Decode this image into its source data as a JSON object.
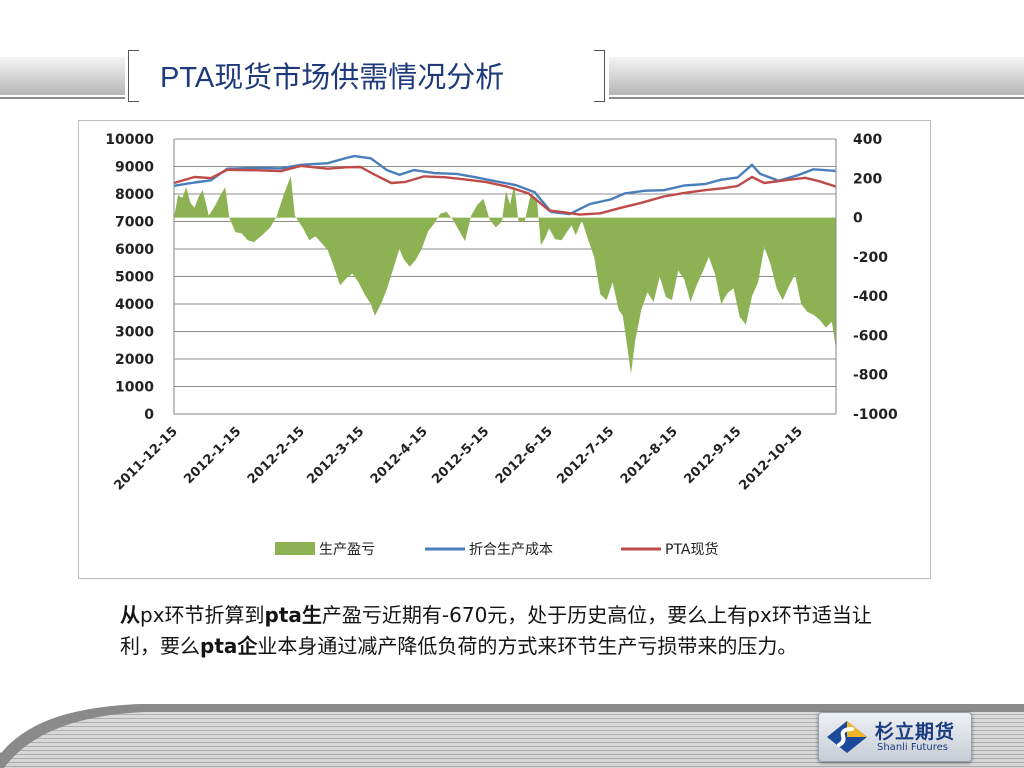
{
  "slide": {
    "title": "PTA现货市场供需情况分析",
    "caption": {
      "p1": "从",
      "p2": "px环节折算到",
      "p3": "pta生",
      "p4": "产盈亏近期有-670元",
      "p5": "，处于历史高位，要么上有px环节适当让利，要么",
      "p6": "pta企",
      "p7": "业本身通过减产降低负荷的方式来环节生产亏损带来的压力。"
    },
    "logo": {
      "cn": "杉立期货",
      "en": "Shanli Futures"
    }
  },
  "colors": {
    "profit": "#8db254",
    "cost": "#4a7ebb",
    "spot": "#be4b48",
    "title": "#1f3a7a"
  },
  "chart_data": {
    "type": "line",
    "left_axis": {
      "min": 0,
      "max": 10000,
      "ticks": [
        "0",
        "1000",
        "2000",
        "3000",
        "4000",
        "5000",
        "6000",
        "7000",
        "8000",
        "9000",
        "10000"
      ]
    },
    "right_axis": {
      "min": -1000,
      "max": 400,
      "ticks": [
        "-1000",
        "-800",
        "-600",
        "-400",
        "-200",
        "0",
        "200",
        "400"
      ]
    },
    "x_ticks": [
      "2011-12-15",
      "2012-1-15",
      "2012-2-15",
      "2012-3-15",
      "2012-4-15",
      "2012-5-15",
      "2012-6-15",
      "2012-7-15",
      "2012-8-15",
      "2012-9-15",
      "2012-10-15"
    ],
    "x_range": [
      "2011-12-15",
      "2012-11-02"
    ],
    "grid": "horizontal",
    "legend_position": "bottom",
    "series": [
      {
        "name": "生产盈亏",
        "kind": "area",
        "axis": "right",
        "points": [
          [
            "2011-12-15",
            0
          ],
          [
            "2011-12-17",
            115
          ],
          [
            "2011-12-19",
            100
          ],
          [
            "2011-12-21",
            155
          ],
          [
            "2011-12-23",
            75
          ],
          [
            "2011-12-25",
            50
          ],
          [
            "2011-12-27",
            105
          ],
          [
            "2011-12-29",
            140
          ],
          [
            "2012-01-01",
            10
          ],
          [
            "2012-01-04",
            60
          ],
          [
            "2012-01-07",
            120
          ],
          [
            "2012-01-09",
            155
          ],
          [
            "2012-01-11",
            0
          ],
          [
            "2012-01-14",
            -75
          ],
          [
            "2012-01-17",
            -80
          ],
          [
            "2012-01-20",
            -115
          ],
          [
            "2012-01-23",
            -125
          ],
          [
            "2012-01-27",
            -90
          ],
          [
            "2012-01-31",
            -50
          ],
          [
            "2012-02-03",
            5
          ],
          [
            "2012-02-07",
            130
          ],
          [
            "2012-02-10",
            210
          ],
          [
            "2012-02-12",
            10
          ],
          [
            "2012-02-16",
            -55
          ],
          [
            "2012-02-19",
            -115
          ],
          [
            "2012-02-22",
            -95
          ],
          [
            "2012-02-25",
            -130
          ],
          [
            "2012-02-28",
            -165
          ],
          [
            "2012-03-02",
            -250
          ],
          [
            "2012-03-05",
            -345
          ],
          [
            "2012-03-08",
            -310
          ],
          [
            "2012-03-11",
            -285
          ],
          [
            "2012-03-14",
            -330
          ],
          [
            "2012-03-17",
            -390
          ],
          [
            "2012-03-20",
            -440
          ],
          [
            "2012-03-22",
            -500
          ],
          [
            "2012-03-25",
            -440
          ],
          [
            "2012-03-28",
            -360
          ],
          [
            "2012-03-31",
            -260
          ],
          [
            "2012-04-03",
            -160
          ],
          [
            "2012-04-05",
            -210
          ],
          [
            "2012-04-08",
            -250
          ],
          [
            "2012-04-11",
            -215
          ],
          [
            "2012-04-14",
            -155
          ],
          [
            "2012-04-17",
            -70
          ],
          [
            "2012-04-20",
            -30
          ],
          [
            "2012-04-23",
            20
          ],
          [
            "2012-04-26",
            30
          ],
          [
            "2012-04-29",
            -10
          ],
          [
            "2012-05-02",
            -65
          ],
          [
            "2012-05-05",
            -120
          ],
          [
            "2012-05-08",
            10
          ],
          [
            "2012-05-11",
            65
          ],
          [
            "2012-05-14",
            95
          ],
          [
            "2012-05-17",
            -10
          ],
          [
            "2012-05-20",
            -50
          ],
          [
            "2012-05-23",
            -20
          ],
          [
            "2012-05-25",
            135
          ],
          [
            "2012-05-27",
            65
          ],
          [
            "2012-05-29",
            170
          ],
          [
            "2012-05-31",
            -15
          ],
          [
            "2012-06-03",
            -25
          ],
          [
            "2012-06-06",
            115
          ],
          [
            "2012-06-09",
            100
          ],
          [
            "2012-06-11",
            -140
          ],
          [
            "2012-06-13",
            -105
          ],
          [
            "2012-06-15",
            -55
          ],
          [
            "2012-06-18",
            -110
          ],
          [
            "2012-06-21",
            -115
          ],
          [
            "2012-06-24",
            -70
          ],
          [
            "2012-06-26",
            -40
          ],
          [
            "2012-06-28",
            -90
          ],
          [
            "2012-07-01",
            -15
          ],
          [
            "2012-07-04",
            -110
          ],
          [
            "2012-07-07",
            -200
          ],
          [
            "2012-07-10",
            -390
          ],
          [
            "2012-07-13",
            -420
          ],
          [
            "2012-07-16",
            -330
          ],
          [
            "2012-07-19",
            -470
          ],
          [
            "2012-07-21",
            -500
          ],
          [
            "2012-07-23",
            -645
          ],
          [
            "2012-07-25",
            -795
          ],
          [
            "2012-07-27",
            -630
          ],
          [
            "2012-07-30",
            -470
          ],
          [
            "2012-08-02",
            -380
          ],
          [
            "2012-08-05",
            -430
          ],
          [
            "2012-08-08",
            -300
          ],
          [
            "2012-08-11",
            -405
          ],
          [
            "2012-08-14",
            -420
          ],
          [
            "2012-08-17",
            -270
          ],
          [
            "2012-08-20",
            -315
          ],
          [
            "2012-08-23",
            -430
          ],
          [
            "2012-08-26",
            -345
          ],
          [
            "2012-08-29",
            -275
          ],
          [
            "2012-09-01",
            -200
          ],
          [
            "2012-09-04",
            -290
          ],
          [
            "2012-09-07",
            -440
          ],
          [
            "2012-09-10",
            -385
          ],
          [
            "2012-09-13",
            -360
          ],
          [
            "2012-09-16",
            -505
          ],
          [
            "2012-09-19",
            -545
          ],
          [
            "2012-09-22",
            -400
          ],
          [
            "2012-09-25",
            -330
          ],
          [
            "2012-09-28",
            -150
          ],
          [
            "2012-10-01",
            -235
          ],
          [
            "2012-10-04",
            -360
          ],
          [
            "2012-10-07",
            -420
          ],
          [
            "2012-10-10",
            -350
          ],
          [
            "2012-10-13",
            -290
          ],
          [
            "2012-10-16",
            -440
          ],
          [
            "2012-10-19",
            -480
          ],
          [
            "2012-10-22",
            -495
          ],
          [
            "2012-10-25",
            -520
          ],
          [
            "2012-10-28",
            -560
          ],
          [
            "2012-10-31",
            -530
          ],
          [
            "2012-11-02",
            -670
          ]
        ]
      },
      {
        "name": "折合生产成本",
        "kind": "line",
        "axis": "left",
        "points": [
          [
            "2011-12-15",
            8300
          ],
          [
            "2011-12-25",
            8420
          ],
          [
            "2012-01-02",
            8500
          ],
          [
            "2012-01-10",
            8920
          ],
          [
            "2012-01-25",
            8950
          ],
          [
            "2012-02-05",
            8930
          ],
          [
            "2012-02-15",
            9060
          ],
          [
            "2012-02-28",
            9120
          ],
          [
            "2012-03-08",
            9310
          ],
          [
            "2012-03-12",
            9380
          ],
          [
            "2012-03-20",
            9300
          ],
          [
            "2012-03-28",
            8860
          ],
          [
            "2012-04-03",
            8700
          ],
          [
            "2012-04-10",
            8870
          ],
          [
            "2012-04-20",
            8760
          ],
          [
            "2012-05-01",
            8730
          ],
          [
            "2012-05-10",
            8610
          ],
          [
            "2012-05-20",
            8460
          ],
          [
            "2012-05-30",
            8320
          ],
          [
            "2012-06-08",
            8060
          ],
          [
            "2012-06-16",
            7350
          ],
          [
            "2012-06-25",
            7270
          ],
          [
            "2012-07-05",
            7640
          ],
          [
            "2012-07-15",
            7800
          ],
          [
            "2012-07-22",
            8020
          ],
          [
            "2012-08-01",
            8120
          ],
          [
            "2012-08-10",
            8140
          ],
          [
            "2012-08-20",
            8310
          ],
          [
            "2012-08-30",
            8360
          ],
          [
            "2012-09-07",
            8520
          ],
          [
            "2012-09-15",
            8600
          ],
          [
            "2012-09-22",
            9060
          ],
          [
            "2012-09-26",
            8730
          ],
          [
            "2012-10-05",
            8480
          ],
          [
            "2012-10-15",
            8700
          ],
          [
            "2012-10-22",
            8900
          ],
          [
            "2012-11-02",
            8840
          ]
        ]
      },
      {
        "name": "PTA现货",
        "kind": "line",
        "axis": "left",
        "points": [
          [
            "2011-12-15",
            8400
          ],
          [
            "2011-12-25",
            8620
          ],
          [
            "2012-01-02",
            8580
          ],
          [
            "2012-01-10",
            8880
          ],
          [
            "2012-01-25",
            8860
          ],
          [
            "2012-02-05",
            8830
          ],
          [
            "2012-02-15",
            9020
          ],
          [
            "2012-02-28",
            8920
          ],
          [
            "2012-03-08",
            8970
          ],
          [
            "2012-03-15",
            8980
          ],
          [
            "2012-03-22",
            8700
          ],
          [
            "2012-03-30",
            8400
          ],
          [
            "2012-04-06",
            8440
          ],
          [
            "2012-04-15",
            8640
          ],
          [
            "2012-04-25",
            8610
          ],
          [
            "2012-05-05",
            8530
          ],
          [
            "2012-05-15",
            8440
          ],
          [
            "2012-05-25",
            8280
          ],
          [
            "2012-06-05",
            8020
          ],
          [
            "2012-06-15",
            7400
          ],
          [
            "2012-06-22",
            7340
          ],
          [
            "2012-06-30",
            7250
          ],
          [
            "2012-07-10",
            7300
          ],
          [
            "2012-07-20",
            7500
          ],
          [
            "2012-07-30",
            7680
          ],
          [
            "2012-08-10",
            7910
          ],
          [
            "2012-08-20",
            8040
          ],
          [
            "2012-08-30",
            8140
          ],
          [
            "2012-09-08",
            8210
          ],
          [
            "2012-09-15",
            8290
          ],
          [
            "2012-09-22",
            8620
          ],
          [
            "2012-09-28",
            8400
          ],
          [
            "2012-10-08",
            8500
          ],
          [
            "2012-10-18",
            8590
          ],
          [
            "2012-10-25",
            8460
          ],
          [
            "2012-11-02",
            8270
          ]
        ]
      }
    ]
  }
}
